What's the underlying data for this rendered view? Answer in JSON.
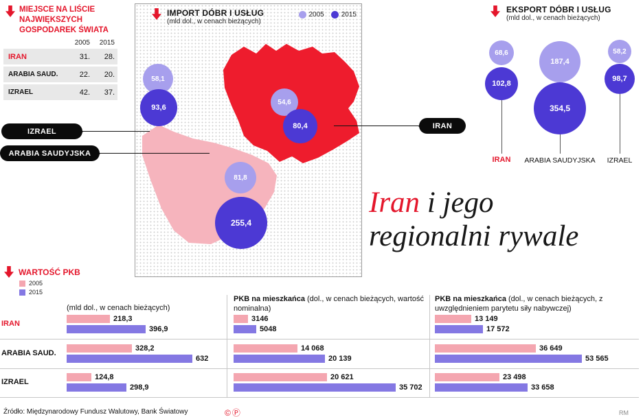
{
  "colors": {
    "red": "#e4162b",
    "map_red": "#ee1c2d",
    "map_pink": "#f6b4bd",
    "light_purple": "#a79fed",
    "dark_purple": "#4c39d4",
    "bar_pink": "#f4a6b0",
    "bar_purple": "#8478e3"
  },
  "ranking": {
    "title_lines": [
      "MIEJSCE NA LIŚCIE",
      "NAJWIĘKSZYCH",
      "GOSPODAREK ŚWIATA"
    ],
    "col_headers": [
      "2005",
      "2015"
    ],
    "rows": [
      {
        "name": "IRAN",
        "v2005": "31.",
        "v2015": "28."
      },
      {
        "name": "ARABIA SAUD.",
        "v2005": "22.",
        "v2015": "20."
      },
      {
        "name": "IZRAEL",
        "v2005": "42.",
        "v2015": "37."
      }
    ]
  },
  "import_section": {
    "title": "IMPORT DÓBR I USŁUG",
    "subtitle": "(mld dol., w cenach bieżących)",
    "legend": {
      "y2005": "2005",
      "y2015": "2015"
    },
    "bubbles": {
      "izrael_2005": "58,1",
      "izrael_2015": "93,6",
      "iran_2005": "54,6",
      "iran_2015": "80,4",
      "arabia_2005": "81,8",
      "arabia_2015": "255,4"
    },
    "labels": {
      "izrael": "IZRAEL",
      "arabia": "ARABIA SAUDYJSKA",
      "iran": "IRAN"
    }
  },
  "export_section": {
    "title": "EKSPORT DÓBR I USŁUG",
    "subtitle": "(mld dol., w cenach bieżących)",
    "countries": [
      {
        "name": "IRAN",
        "v2005": "68,6",
        "v2015": "102,8"
      },
      {
        "name": "ARABIA SAUDYJSKA",
        "v2005": "187,4",
        "v2015": "354,5"
      },
      {
        "name": "IZRAEL",
        "v2005": "58,2",
        "v2015": "98,7"
      }
    ]
  },
  "headline": {
    "red": "Iran",
    "rest1": " i jego",
    "line2": "regionalni rywale"
  },
  "pkb": {
    "title": "WARTOŚĆ PKB",
    "legend": {
      "y2005": "2005",
      "y2015": "2015"
    },
    "col1_header": "(mld dol., w cenach bieżących)",
    "col2_header_bold": "PKB na mieszkańca",
    "col2_header_rest": " (dol., w cenach bieżących, wartość nominalna)",
    "col3_header_bold": "PKB na mieszkańca",
    "col3_header_rest": " (dol., w cenach bieżących, z uwzględnieniem parytetu siły nabywczej)",
    "row_labels": [
      "IRAN",
      "ARABIA SAUD.",
      "IZRAEL"
    ],
    "col1": {
      "labels": [
        [
          "218,3",
          "396,9"
        ],
        [
          "328,2",
          "632"
        ],
        [
          "124,8",
          "298,9"
        ]
      ]
    },
    "col2": {
      "labels": [
        [
          "3146",
          "5048"
        ],
        [
          "14 068",
          "20 139"
        ],
        [
          "20 621",
          "35 702"
        ]
      ]
    },
    "col3": {
      "labels": [
        [
          "13 149",
          "17 572"
        ],
        [
          "36 649",
          "53 565"
        ],
        [
          "23 498",
          "33 658"
        ]
      ]
    }
  },
  "footer": {
    "source": "Źródło: Międzynarodowy Fundusz Walutowy, Bank Światowy",
    "marks": "©Ⓟ",
    "credit": "RM"
  },
  "chart_data": [
    {
      "type": "table",
      "title": "MIEJSCE NA LIŚCIE NAJWIĘKSZYCH GOSPODAREK ŚWIATA",
      "columns": [
        "kraj",
        "2005",
        "2015"
      ],
      "rows": [
        [
          "IRAN",
          31,
          28
        ],
        [
          "ARABIA SAUD.",
          22,
          20
        ],
        [
          "IZRAEL",
          42,
          37
        ]
      ]
    },
    {
      "type": "scatter",
      "subtype": "bubble",
      "title": "IMPORT DÓBR I USŁUG",
      "unit": "mld dol., w cenach bieżących",
      "categories": [
        "IZRAEL",
        "IRAN",
        "ARABIA SAUDYJSKA"
      ],
      "series": [
        {
          "name": "2005",
          "values": [
            58.1,
            54.6,
            81.8
          ]
        },
        {
          "name": "2015",
          "values": [
            93.6,
            80.4,
            255.4
          ]
        }
      ],
      "legend_position": "top-right"
    },
    {
      "type": "scatter",
      "subtype": "bubble",
      "title": "EKSPORT DÓBR I USŁUG",
      "unit": "mld dol., w cenach bieżących",
      "categories": [
        "IRAN",
        "ARABIA SAUDYJSKA",
        "IZRAEL"
      ],
      "series": [
        {
          "name": "2005",
          "values": [
            68.6,
            187.4,
            58.2
          ]
        },
        {
          "name": "2015",
          "values": [
            102.8,
            354.5,
            98.7
          ]
        }
      ]
    },
    {
      "type": "bar",
      "title": "WARTOŚĆ PKB (mld dol., w cenach bieżących)",
      "categories": [
        "IRAN",
        "ARABIA SAUD.",
        "IZRAEL"
      ],
      "series": [
        {
          "name": "2005",
          "values": [
            218.3,
            328.2,
            124.8
          ]
        },
        {
          "name": "2015",
          "values": [
            396.9,
            632,
            298.9
          ]
        }
      ]
    },
    {
      "type": "bar",
      "title": "PKB na mieszkańca (dol., w cenach bieżących, wartość nominalna)",
      "categories": [
        "IRAN",
        "ARABIA SAUD.",
        "IZRAEL"
      ],
      "series": [
        {
          "name": "2005",
          "values": [
            3146,
            14068,
            20621
          ]
        },
        {
          "name": "2015",
          "values": [
            5048,
            20139,
            35702
          ]
        }
      ]
    },
    {
      "type": "bar",
      "title": "PKB na mieszkańca (dol., w cenach bieżących, z uwzględnieniem parytetu siły nabywczej)",
      "categories": [
        "IRAN",
        "ARABIA SAUD.",
        "IZRAEL"
      ],
      "series": [
        {
          "name": "2005",
          "values": [
            13149,
            36649,
            23498
          ]
        },
        {
          "name": "2015",
          "values": [
            17572,
            53565,
            33658
          ]
        }
      ]
    }
  ]
}
